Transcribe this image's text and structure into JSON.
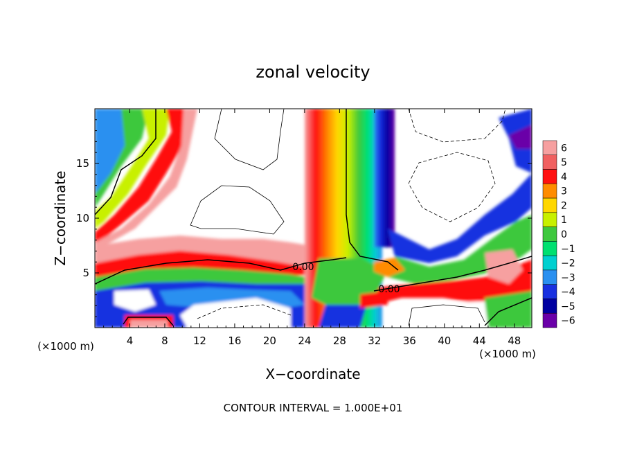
{
  "chart_data": {
    "type": "heatmap",
    "title": "zonal velocity",
    "xlabel": "X−coordinate",
    "ylabel": "Z−coordinate",
    "x_unit": "(×1000 m)",
    "y_unit": "(×1000 m)",
    "xlim": [
      0,
      50
    ],
    "ylim": [
      0,
      20
    ],
    "x_ticks": [
      4,
      8,
      12,
      16,
      20,
      24,
      28,
      32,
      36,
      40,
      44,
      48
    ],
    "y_ticks": [
      5,
      10,
      15
    ],
    "footer": "CONTOUR INTERVAL = 1.000E+01",
    "colorbar": {
      "levels": [
        6,
        5,
        4,
        3,
        2,
        1,
        0,
        -1,
        -2,
        -3,
        -4,
        -5,
        -6
      ],
      "level_labels": [
        "6",
        "5",
        "4",
        "3",
        "2",
        "1",
        "0",
        "−1",
        "−2",
        "−3",
        "−4",
        "−5",
        "−6"
      ],
      "colors": [
        "#f6a0a0",
        "#f06060",
        "#ff1010",
        "#ff8c00",
        "#ffd700",
        "#c8f000",
        "#3ec83e",
        "#00e070",
        "#00d0d0",
        "#2a90f0",
        "#1830e0",
        "#0000a0",
        "#6a00a8"
      ]
    },
    "contour_labels": [
      "0.00",
      "0.00"
    ],
    "fields": {
      "positive_plume": {
        "x_center": 27.5,
        "z_range": [
          0,
          20
        ]
      },
      "negative_band": {
        "x_center": 31.5,
        "z_range": [
          5,
          20
        ]
      },
      "shear_layer_z": 6
    }
  }
}
